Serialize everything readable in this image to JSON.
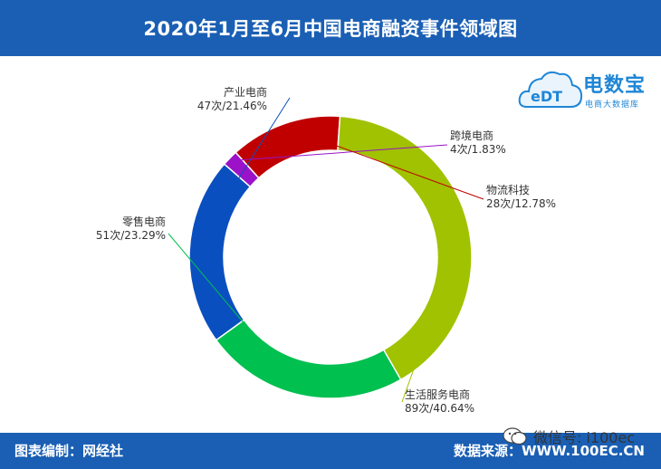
{
  "header": {
    "title": "2020年1月至6月中国电商融资事件领域图"
  },
  "logo": {
    "main": "电数宝",
    "sub": "电商大数据库",
    "mark": "eDT"
  },
  "footer": {
    "left": "图表编制：网经社",
    "right": "数据来源：WWW.100EC.CN"
  },
  "watermark": {
    "text": "微信号: i100ec"
  },
  "colors": {
    "header_bg": "#1a5fb4",
    "产业电商": "#0a4fbf",
    "跨境电商": "#9b12c8",
    "物流科技": "#c00000",
    "生活服务电商": "#a0c200",
    "零售电商": "#00c050"
  },
  "chart_data": {
    "type": "pie",
    "subtype": "donut",
    "title": "2020年1月至6月中国电商融资事件领域图",
    "slices": [
      {
        "name": "产业电商",
        "count": 47,
        "percent": 21.46,
        "label": "47次/21.46%",
        "color": "#0a4fbf"
      },
      {
        "name": "跨境电商",
        "count": 4,
        "percent": 1.83,
        "label": "4次/1.83%",
        "color": "#9b12c8"
      },
      {
        "name": "物流科技",
        "count": 28,
        "percent": 12.78,
        "label": "28次/12.78%",
        "color": "#c00000"
      },
      {
        "name": "生活服务电商",
        "count": 89,
        "percent": 40.64,
        "label": "89次/40.64%",
        "color": "#a0c200"
      },
      {
        "name": "零售电商",
        "count": 51,
        "percent": 23.29,
        "label": "51次/23.29%",
        "color": "#00c050"
      }
    ],
    "start_category": "产业电商"
  }
}
